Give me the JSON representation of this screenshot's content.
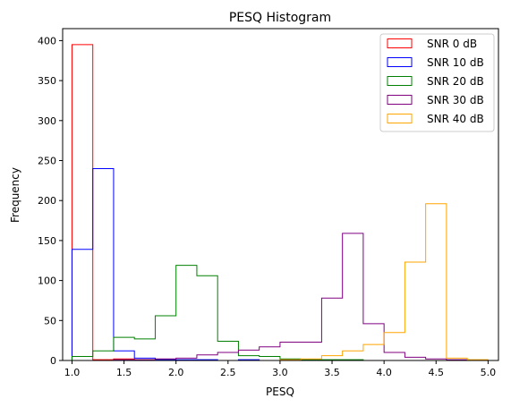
{
  "chart_data": {
    "type": "histogram",
    "title": "PESQ Histogram",
    "xlabel": "PESQ",
    "ylabel": "Frequency",
    "xlim": [
      0.91,
      5.1
    ],
    "ylim": [
      0,
      415
    ],
    "xticks": [
      "1.0",
      "1.5",
      "2.0",
      "2.5",
      "3.0",
      "3.5",
      "4.0",
      "4.5",
      "5.0"
    ],
    "xtick_values": [
      1.0,
      1.5,
      2.0,
      2.5,
      3.0,
      3.5,
      4.0,
      4.5,
      5.0
    ],
    "yticks": [
      "0",
      "50",
      "100",
      "150",
      "200",
      "250",
      "300",
      "350",
      "400"
    ],
    "ytick_values": [
      0,
      50,
      100,
      150,
      200,
      250,
      300,
      350,
      400
    ],
    "bin_edges": [
      1.0,
      1.2,
      1.4,
      1.6,
      1.8,
      2.0,
      2.2,
      2.4,
      2.6,
      2.8,
      3.0,
      3.2,
      3.4,
      3.6,
      3.8,
      4.0,
      4.2,
      4.4,
      4.6,
      4.8,
      5.0
    ],
    "legend_position": "top-right",
    "series": [
      {
        "name": "SNR 0 dB",
        "color": "#ff0000",
        "edges": [
          1.0,
          1.2,
          1.4,
          1.6,
          1.8,
          2.0
        ],
        "counts": [
          395,
          1,
          2,
          1,
          1
        ]
      },
      {
        "name": "SNR 10 dB",
        "color": "#0000ff",
        "edges": [
          1.0,
          1.2,
          1.4,
          1.6,
          1.8,
          2.0,
          2.2,
          2.4,
          2.6,
          2.8,
          3.0
        ],
        "counts": [
          139,
          240,
          12,
          3,
          1,
          1,
          1,
          0,
          1,
          0
        ]
      },
      {
        "name": "SNR 20 dB",
        "color": "#008000",
        "edges": [
          1.0,
          1.2,
          1.4,
          1.6,
          1.8,
          2.0,
          2.2,
          2.4,
          2.6,
          2.8,
          3.0,
          3.2,
          3.4,
          3.6,
          3.8
        ],
        "counts": [
          5,
          12,
          29,
          27,
          56,
          119,
          106,
          24,
          6,
          5,
          2,
          1,
          1,
          1
        ]
      },
      {
        "name": "SNR 30 dB",
        "color": "#800080",
        "edges": [
          1.0,
          1.2,
          1.4,
          1.6,
          1.8,
          2.0,
          2.2,
          2.4,
          2.6,
          2.8,
          3.0,
          3.2,
          3.4,
          3.6,
          3.8,
          4.0,
          4.2,
          4.4,
          4.6,
          4.8
        ],
        "counts": [
          0,
          0,
          1,
          1,
          2,
          3,
          7,
          10,
          13,
          17,
          23,
          23,
          78,
          159,
          46,
          10,
          4,
          2,
          1
        ]
      },
      {
        "name": "SNR 40 dB",
        "color": "#ffa500",
        "edges": [
          3.0,
          3.2,
          3.4,
          3.6,
          3.8,
          4.0,
          4.2,
          4.4,
          4.6,
          4.8,
          5.0
        ],
        "counts": [
          1,
          2,
          6,
          12,
          20,
          35,
          123,
          196,
          3,
          1
        ]
      }
    ]
  }
}
